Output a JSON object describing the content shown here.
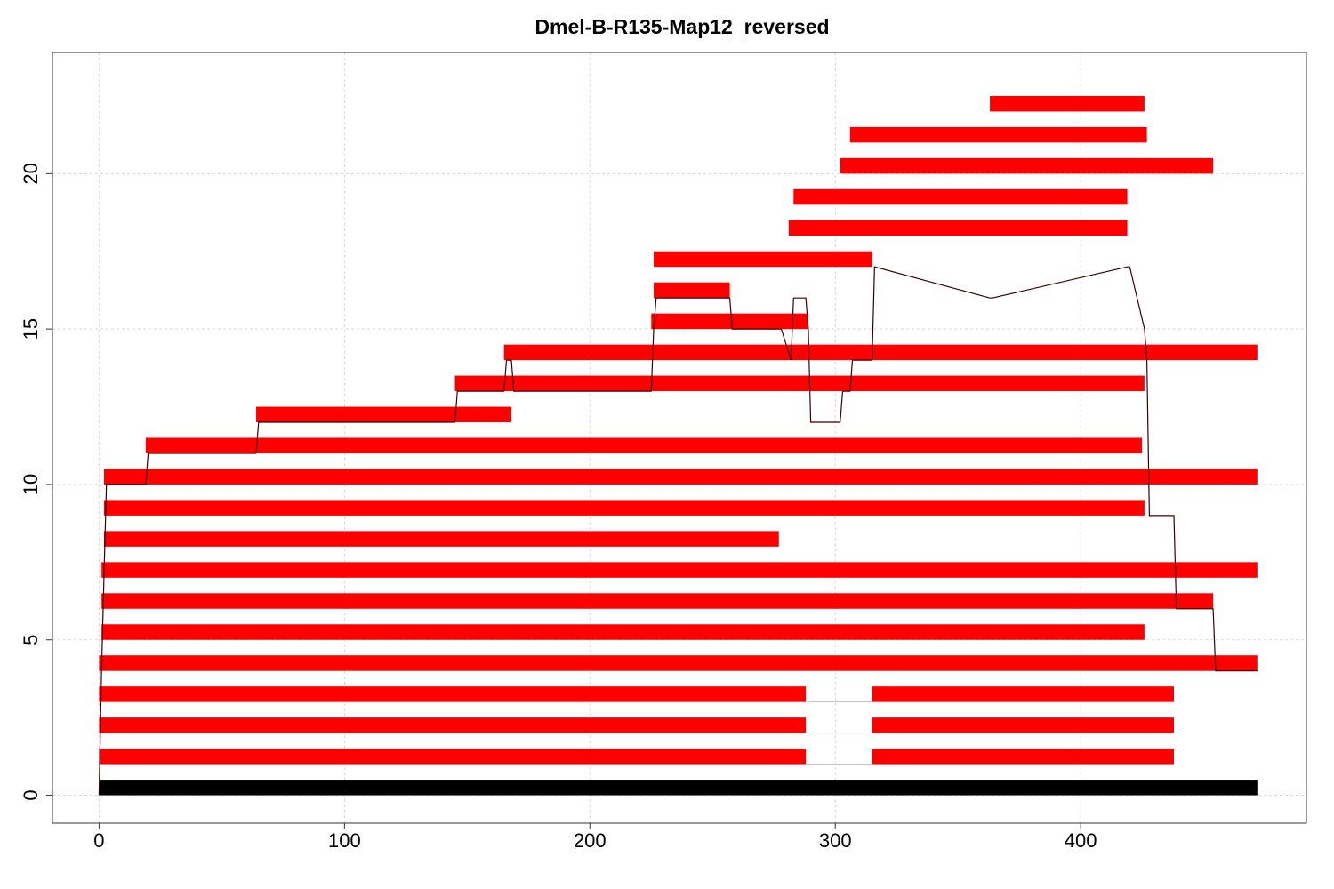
{
  "chart_data": {
    "type": "bar",
    "title": "Dmel-B-R135-Map12_reversed",
    "xlabel": "",
    "ylabel": "",
    "xlim": [
      -19,
      492
    ],
    "ylim": [
      -0.9,
      23.9
    ],
    "xticks": [
      0,
      100,
      200,
      300,
      400
    ],
    "yticks": [
      0,
      5,
      10,
      15,
      20
    ],
    "grid": true,
    "colors": {
      "reference": "#000000",
      "read": "#ff0000",
      "coverage": "#3a0000",
      "gap": "#bfbfbf",
      "grid": "#d9d9d9"
    },
    "reference": {
      "start": 0,
      "end": 472,
      "level": 0
    },
    "reads": [
      {
        "level": 1,
        "segments": [
          [
            0,
            288
          ],
          [
            315,
            438
          ]
        ]
      },
      {
        "level": 2,
        "segments": [
          [
            0,
            288
          ],
          [
            315,
            438
          ]
        ]
      },
      {
        "level": 3,
        "segments": [
          [
            0,
            288
          ],
          [
            315,
            438
          ]
        ]
      },
      {
        "level": 4,
        "segments": [
          [
            0,
            472
          ]
        ]
      },
      {
        "level": 5,
        "segments": [
          [
            1,
            426
          ]
        ]
      },
      {
        "level": 6,
        "segments": [
          [
            1,
            454
          ]
        ]
      },
      {
        "level": 7,
        "segments": [
          [
            1,
            472
          ]
        ]
      },
      {
        "level": 8,
        "segments": [
          [
            2,
            277
          ]
        ]
      },
      {
        "level": 9,
        "segments": [
          [
            2,
            426
          ]
        ]
      },
      {
        "level": 10,
        "segments": [
          [
            2,
            472
          ]
        ]
      },
      {
        "level": 11,
        "segments": [
          [
            19,
            425
          ]
        ]
      },
      {
        "level": 12,
        "segments": [
          [
            64,
            168
          ]
        ]
      },
      {
        "level": 13,
        "segments": [
          [
            145,
            426
          ]
        ]
      },
      {
        "level": 14,
        "segments": [
          [
            165,
            472
          ]
        ]
      },
      {
        "level": 15,
        "segments": [
          [
            225,
            289
          ]
        ]
      },
      {
        "level": 16,
        "segments": [
          [
            226,
            257
          ]
        ]
      },
      {
        "level": 17,
        "segments": [
          [
            226,
            315
          ]
        ]
      },
      {
        "level": 18,
        "segments": [
          [
            281,
            419
          ]
        ]
      },
      {
        "level": 19,
        "segments": [
          [
            283,
            419
          ]
        ]
      },
      {
        "level": 20,
        "segments": [
          [
            302,
            454
          ]
        ]
      },
      {
        "level": 21,
        "segments": [
          [
            306,
            427
          ]
        ]
      },
      {
        "level": 22,
        "segments": [
          [
            363,
            426
          ]
        ]
      }
    ],
    "coverage": {
      "x": [
        0,
        1,
        2,
        3,
        19,
        20,
        64,
        65,
        145,
        146,
        165,
        166,
        168,
        169,
        225,
        226,
        227,
        257,
        258,
        277,
        278,
        282,
        283,
        288,
        289,
        290,
        302,
        303,
        306,
        307,
        315,
        316,
        363,
        364,
        419,
        420,
        426,
        427,
        428,
        438,
        439,
        454,
        455,
        472
      ],
      "y": [
        0,
        4,
        7,
        10,
        10,
        11,
        11,
        12,
        12,
        13,
        13,
        14,
        14,
        13,
        13,
        15,
        16,
        16,
        15,
        15,
        15,
        14,
        16,
        16,
        15,
        12,
        12,
        13,
        13,
        14,
        14,
        17,
        16,
        16,
        17,
        17,
        15,
        14,
        9,
        9,
        6,
        6,
        4,
        4
      ]
    }
  }
}
